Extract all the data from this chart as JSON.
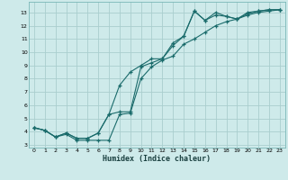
{
  "xlabel": "Humidex (Indice chaleur)",
  "bg_color": "#ceeaea",
  "grid_color": "#aacece",
  "line_color": "#1a6b6b",
  "xlim": [
    -0.5,
    23.5
  ],
  "ylim": [
    2.8,
    13.8
  ],
  "xticks": [
    0,
    1,
    2,
    3,
    4,
    5,
    6,
    7,
    8,
    9,
    10,
    11,
    12,
    13,
    14,
    15,
    16,
    17,
    18,
    19,
    20,
    21,
    22,
    23
  ],
  "yticks": [
    3,
    4,
    5,
    6,
    7,
    8,
    9,
    10,
    11,
    12,
    13
  ],
  "line1_x": [
    0,
    1,
    2,
    3,
    4,
    5,
    6,
    7,
    8,
    9,
    10,
    11,
    12,
    13,
    14,
    15,
    16,
    17,
    18,
    19,
    20,
    21,
    22,
    23
  ],
  "line1_y": [
    4.3,
    4.1,
    3.6,
    3.8,
    3.35,
    3.35,
    3.35,
    3.35,
    5.3,
    5.4,
    8.0,
    8.9,
    9.4,
    9.7,
    10.6,
    11.0,
    11.5,
    12.0,
    12.3,
    12.5,
    12.8,
    13.0,
    13.1,
    13.2
  ],
  "line2_x": [
    0,
    1,
    2,
    3,
    4,
    5,
    6,
    7,
    8,
    9,
    10,
    11,
    12,
    13,
    14,
    15,
    16,
    17,
    18,
    19,
    20,
    21,
    22,
    23
  ],
  "line2_y": [
    4.3,
    4.1,
    3.6,
    3.9,
    3.5,
    3.5,
    3.9,
    5.3,
    5.5,
    5.5,
    8.9,
    9.2,
    9.5,
    10.5,
    11.2,
    13.1,
    12.4,
    12.8,
    12.7,
    12.5,
    12.9,
    13.1,
    13.2,
    13.2
  ],
  "line3_x": [
    0,
    1,
    2,
    3,
    4,
    5,
    6,
    7,
    8,
    9,
    10,
    11,
    12,
    13,
    14,
    15,
    16,
    17,
    18,
    19,
    20,
    21,
    22,
    23
  ],
  "line3_y": [
    4.3,
    4.1,
    3.6,
    3.9,
    3.5,
    3.5,
    3.9,
    5.3,
    7.5,
    8.5,
    9.0,
    9.5,
    9.5,
    10.7,
    11.2,
    13.1,
    12.4,
    13.0,
    12.7,
    12.5,
    13.0,
    13.1,
    13.2,
    13.2
  ]
}
